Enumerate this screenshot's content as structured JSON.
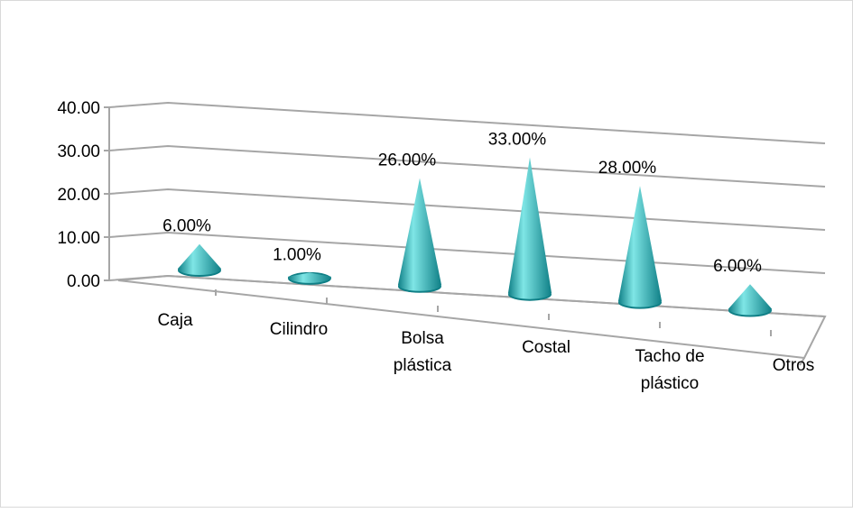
{
  "chart_data": {
    "type": "bar",
    "style": "3d-cone",
    "title": "",
    "xlabel": "",
    "ylabel": "",
    "categories": [
      [
        "Caja"
      ],
      [
        "Cilindro"
      ],
      [
        "Bolsa",
        "plástica"
      ],
      [
        "Costal"
      ],
      [
        "Tacho de",
        "plástico"
      ],
      [
        "Otros"
      ]
    ],
    "values": [
      6,
      1,
      26,
      33,
      28,
      6
    ],
    "data_labels": [
      "6.00%",
      "1.00%",
      "26.00%",
      "33.00%",
      "28.00%",
      "6.00%"
    ],
    "y_ticks": [
      "0.00",
      "10.00",
      "20.00",
      "30.00",
      "40.00"
    ],
    "ylim": [
      0,
      40
    ],
    "grid": true,
    "legend": "none",
    "colors": {
      "cone_light": "#7fe6e6",
      "cone_mid": "#2cc0c4",
      "cone_dark": "#0f7f86",
      "gridline": "#a6a6a6"
    }
  }
}
